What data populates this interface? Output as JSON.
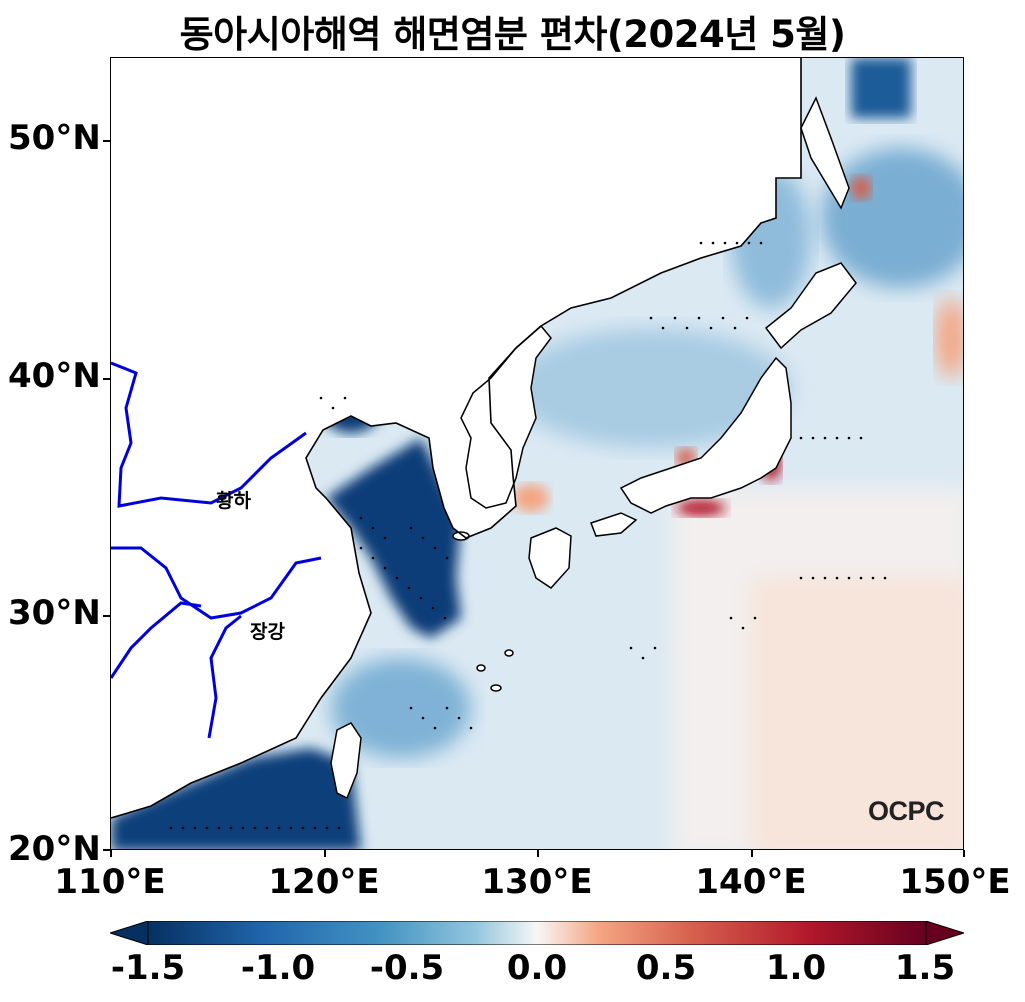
{
  "title": "동아시아해역 해면염분 편차(2024년 5월)",
  "y_ticks": [
    "50°N",
    "40°N",
    "30°N",
    "20°N"
  ],
  "x_ticks": [
    "110°E",
    "120°E",
    "130°E",
    "140°E",
    "150°E"
  ],
  "colorbar": {
    "ticks": [
      "-1.5",
      "-1.0",
      "-0.5",
      "0.0",
      "0.5",
      "1.0",
      "1.5"
    ],
    "colors": {
      "min": "#053061",
      "mid": "#f7f7f7",
      "max": "#67001f"
    }
  },
  "rivers": {
    "yellow": "황하",
    "yangtze": "장강",
    "color": "#0000dd"
  },
  "logo": "OCPC",
  "map": {
    "lon_range": [
      110,
      150
    ],
    "lat_range": [
      20,
      53.5
    ]
  }
}
